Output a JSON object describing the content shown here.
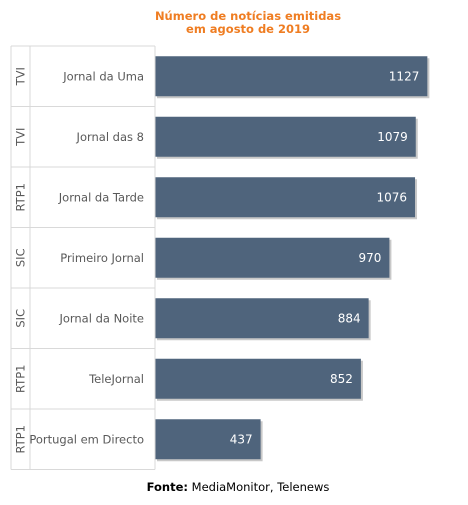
{
  "title": {
    "line1": "Número de notícias emitidas",
    "line2": "em agosto de 2019"
  },
  "source": {
    "label": "Fonte:",
    "text": "MediaMonitor, Telenews"
  },
  "colors": {
    "bar": "#4f647c",
    "title": "#ef7d22",
    "grid": "#d9d9d9",
    "text": "#595959",
    "bar_label": "#ffffff"
  },
  "chart_data": {
    "type": "bar",
    "orientation": "horizontal",
    "categories": [
      {
        "channel": "TVI",
        "program": "Jornal da Uma"
      },
      {
        "channel": "TVI",
        "program": "Jornal das 8"
      },
      {
        "channel": "RTP1",
        "program": "Jornal da Tarde"
      },
      {
        "channel": "SIC",
        "program": "Primeiro Jornal"
      },
      {
        "channel": "SIC",
        "program": "Jornal da Noite"
      },
      {
        "channel": "RTP1",
        "program": "TeleJornal"
      },
      {
        "channel": "RTP1",
        "program": "Portugal em Directo"
      }
    ],
    "values": [
      1127,
      1079,
      1076,
      970,
      884,
      852,
      437
    ],
    "xlim": [
      0,
      1200
    ],
    "data_labels": true,
    "grid": false
  }
}
